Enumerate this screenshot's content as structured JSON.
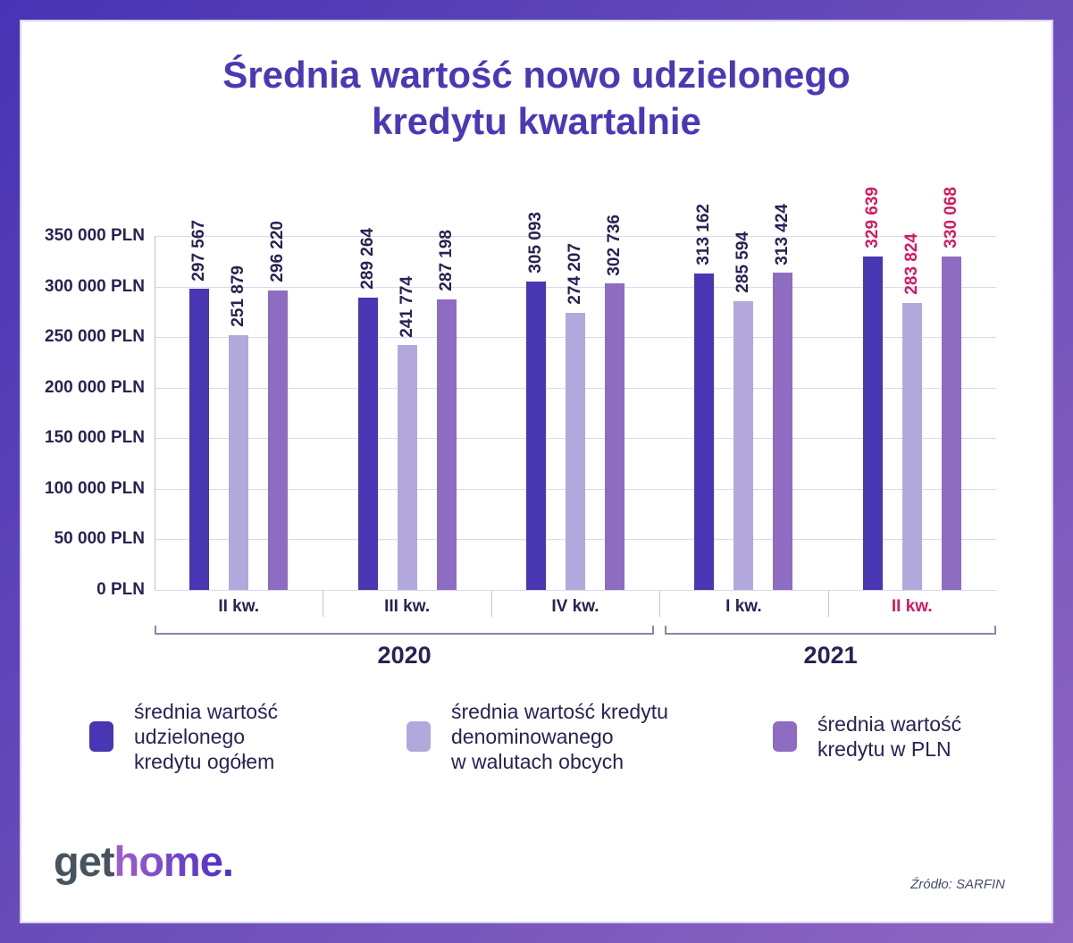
{
  "title": {
    "line1": "Średnia wartość nowo udzielonego",
    "line2": "kredytu kwartalnie"
  },
  "chart_data": {
    "type": "bar",
    "categories": [
      "II kw.",
      "III kw.",
      "IV kw.",
      "I kw.",
      "II kw."
    ],
    "groups": [
      {
        "label": "2020",
        "from": 0,
        "to": 3
      },
      {
        "label": "2021",
        "from": 3,
        "to": 5
      }
    ],
    "series": [
      {
        "name": "średnia wartość udzielonego kredytu ogółem",
        "color": "#4836b2",
        "values": [
          297567,
          289264,
          305093,
          313162,
          329639
        ]
      },
      {
        "name": "średnia wartość kredytu denominowanego w walutach obcych",
        "color": "#b3a8dc",
        "values": [
          251879,
          241774,
          274207,
          285594,
          283824
        ]
      },
      {
        "name": "średnia wartość kredytu w PLN",
        "color": "#8d6cc1",
        "values": [
          296220,
          287198,
          302736,
          313424,
          330068
        ]
      }
    ],
    "y_ticks": [
      "0 PLN",
      "50 000 PLN",
      "100 000 PLN",
      "150 000 PLN",
      "200 000 PLN",
      "250 000 PLN",
      "300 000 PLN",
      "350 000 PLN"
    ],
    "ylim": [
      0,
      350000
    ],
    "grid": true,
    "legend_position": "bottom",
    "highlight_category_index": 4,
    "highlight_color": "#d5195f",
    "label_color": "#2b2153"
  },
  "legend": {
    "items": [
      {
        "lines": [
          "średnia wartość",
          "udzielonego",
          "kredytu ogółem"
        ]
      },
      {
        "lines": [
          "średnia wartość kredytu",
          "denominowanego",
          "w walutach obcych"
        ]
      },
      {
        "lines": [
          "średnia wartość",
          "kredytu w PLN"
        ]
      }
    ]
  },
  "footer": {
    "logo_get": "get",
    "logo_home": "home.",
    "source": "Źródło: SARFIN"
  }
}
